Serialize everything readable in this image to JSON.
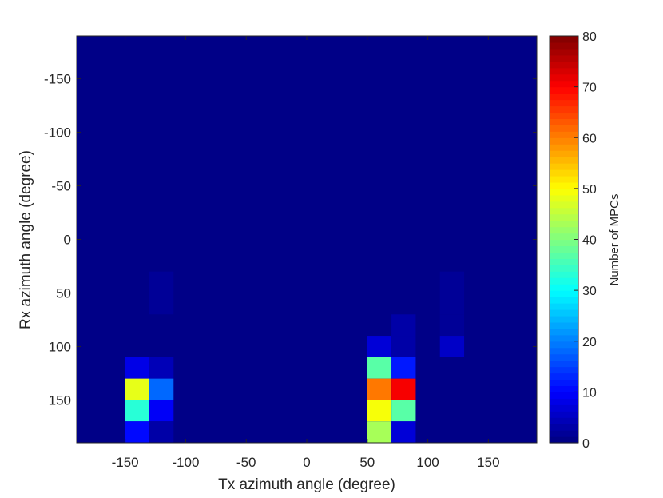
{
  "chart_data": {
    "type": "heatmap",
    "title": "",
    "xlabel": "Tx azimuth angle (degree)",
    "ylabel": "Rx azimuth angle (degree)",
    "xlim": [
      -190,
      190
    ],
    "ylim": [
      -190,
      190
    ],
    "y_direction": "reversed",
    "bin_size": 20,
    "x_ticks": [
      "-150",
      "-100",
      "-50",
      "0",
      "50",
      "100",
      "150"
    ],
    "y_ticks": [
      "-150",
      "-100",
      "-50",
      "0",
      "50",
      "100",
      "150"
    ],
    "background_value": 1,
    "cells": [
      {
        "x": -120,
        "y": 40,
        "value": 2
      },
      {
        "x": -120,
        "y": 60,
        "value": 2
      },
      {
        "x": -140,
        "y": 120,
        "value": 8
      },
      {
        "x": -120,
        "y": 120,
        "value": 4
      },
      {
        "x": -140,
        "y": 140,
        "value": 48
      },
      {
        "x": -120,
        "y": 140,
        "value": 18
      },
      {
        "x": -140,
        "y": 160,
        "value": 33
      },
      {
        "x": -120,
        "y": 160,
        "value": 9
      },
      {
        "x": -140,
        "y": 180,
        "value": 10
      },
      {
        "x": -120,
        "y": 180,
        "value": 3
      },
      {
        "x": 60,
        "y": 100,
        "value": 7
      },
      {
        "x": 80,
        "y": 80,
        "value": 3
      },
      {
        "x": 80,
        "y": 100,
        "value": 3
      },
      {
        "x": 60,
        "y": 120,
        "value": 37
      },
      {
        "x": 80,
        "y": 120,
        "value": 12
      },
      {
        "x": 60,
        "y": 140,
        "value": 60
      },
      {
        "x": 80,
        "y": 140,
        "value": 70
      },
      {
        "x": 60,
        "y": 160,
        "value": 49
      },
      {
        "x": 80,
        "y": 160,
        "value": 37
      },
      {
        "x": 60,
        "y": 180,
        "value": 43
      },
      {
        "x": 80,
        "y": 180,
        "value": 7
      },
      {
        "x": 120,
        "y": 40,
        "value": 2
      },
      {
        "x": 120,
        "y": 60,
        "value": 2
      },
      {
        "x": 120,
        "y": 80,
        "value": 2
      },
      {
        "x": 120,
        "y": 100,
        "value": 6
      }
    ],
    "colorbar": {
      "label": "Number of MPCs",
      "min": 0,
      "max": 80,
      "ticks": [
        "0",
        "10",
        "20",
        "30",
        "40",
        "50",
        "60",
        "70",
        "80"
      ],
      "colormap": "jet",
      "levels": 64
    }
  }
}
